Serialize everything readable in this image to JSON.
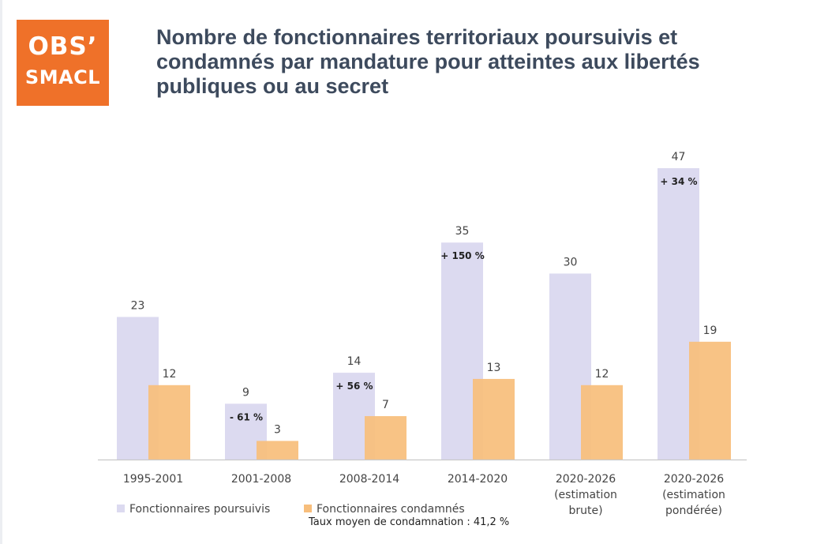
{
  "logo": {
    "line1": "OBS’",
    "line2": "SMACL"
  },
  "header": {
    "title": "Nombre de fonctionnaires territoriaux poursuivis et condamnés par mandature pour atteintes aux libertés publiques ou au secret"
  },
  "colors": {
    "poursuivis": "#dcdaf0",
    "condamnes": "#f7be7c",
    "brand": "#ef7129",
    "title": "#3d4a5d"
  },
  "chart_data": {
    "type": "bar",
    "title": "Nombre de fonctionnaires territoriaux poursuivis et condamnés par mandature pour atteintes aux libertés publiques ou au secret",
    "categories": [
      [
        "1995-2001"
      ],
      [
        "2001-2008"
      ],
      [
        "2008-2014"
      ],
      [
        "2014-2020"
      ],
      [
        "2020-2026",
        "(estimation",
        "brute)"
      ],
      [
        "2020-2026",
        "(estimation",
        "pondérée)"
      ]
    ],
    "series": [
      {
        "name": "Fonctionnaires poursuivis",
        "values": [
          23,
          9,
          14,
          35,
          30,
          47
        ]
      },
      {
        "name": "Fonctionnaires condamnés",
        "values": [
          12,
          3,
          7,
          13,
          12,
          19
        ]
      }
    ],
    "change_labels": [
      "",
      "- 61 %",
      "+ 56 %",
      "+ 150 %",
      "",
      "+ 34 %"
    ],
    "ylim": [
      0,
      47
    ],
    "grid": false,
    "legend_position": "bottom-left"
  },
  "legend": {
    "item1": "Fonctionnaires poursuivis",
    "item2": "Fonctionnaires condamnés"
  },
  "note": "Taux moyen de condamnation : 41,2 %"
}
